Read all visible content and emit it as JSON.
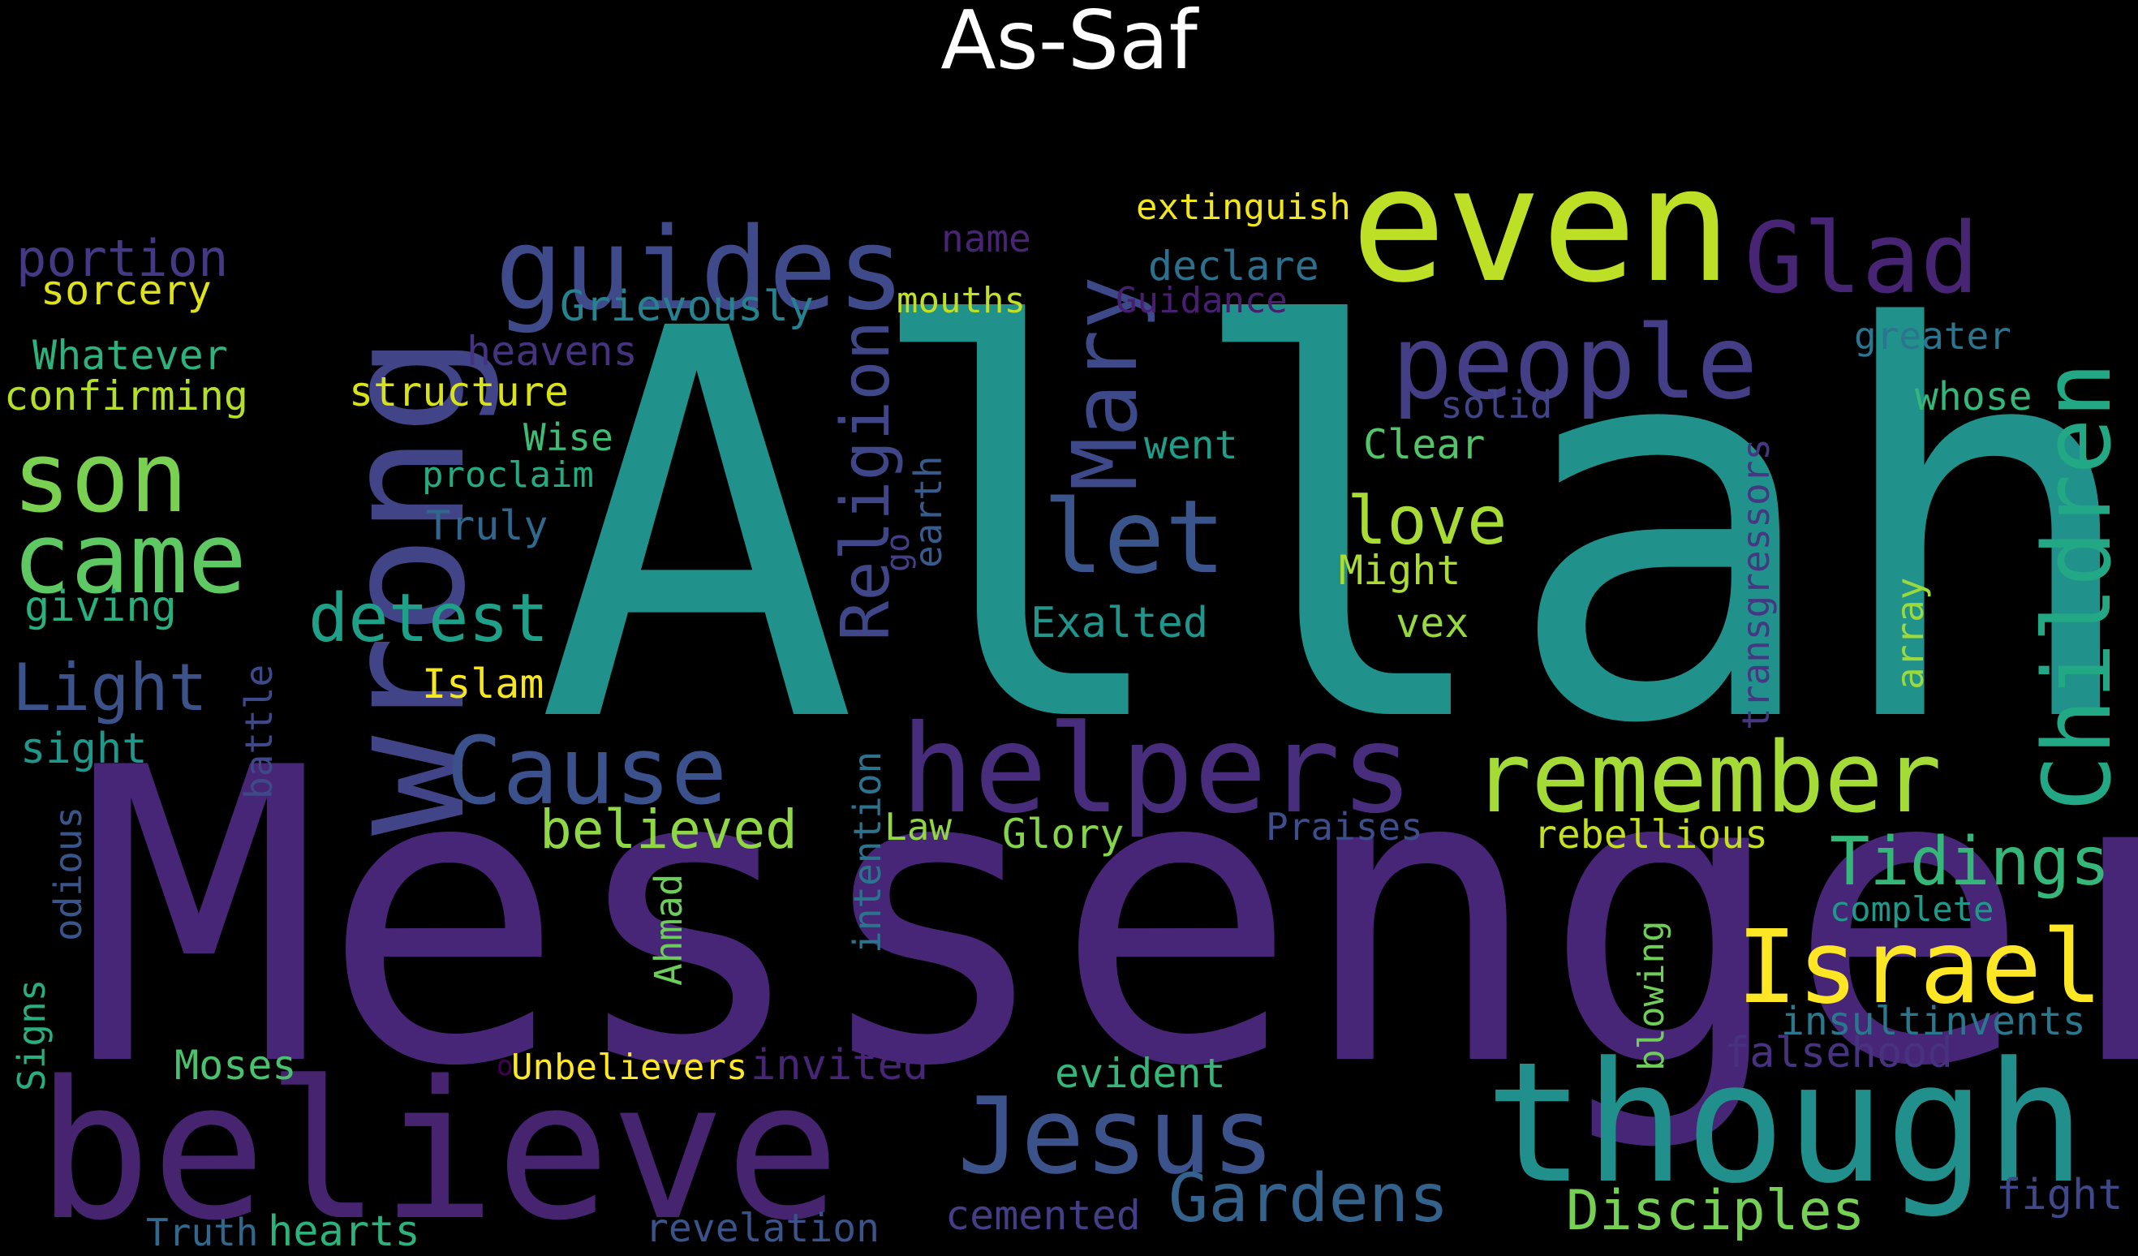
{
  "title": "As-Saf",
  "palette": {
    "background": "#000000",
    "title_color": "#ffffff"
  },
  "words": [
    {
      "text": "Allah",
      "color": "#21918c"
    },
    {
      "text": "Messenger",
      "color": "#482677"
    },
    {
      "text": "believe",
      "color": "#46246f"
    },
    {
      "text": "though",
      "color": "#21908d"
    },
    {
      "text": "wrong",
      "color": "#414487"
    },
    {
      "text": "even",
      "color": "#bddf26"
    },
    {
      "text": "helpers",
      "color": "#472d7b"
    },
    {
      "text": "Israel",
      "color": "#fde725"
    },
    {
      "text": "remember",
      "color": "#a5db36"
    },
    {
      "text": "guides",
      "color": "#3e4a89"
    },
    {
      "text": "people",
      "color": "#433e85"
    },
    {
      "text": "Jesus",
      "color": "#3b528b"
    },
    {
      "text": "Glad",
      "color": "#482475"
    },
    {
      "text": "Children",
      "color": "#22a884"
    },
    {
      "text": "Mary",
      "color": "#3e4989"
    },
    {
      "text": "let",
      "color": "#3a548c"
    },
    {
      "text": "Cause",
      "color": "#3b518b"
    },
    {
      "text": "came",
      "color": "#5ec962"
    },
    {
      "text": "son",
      "color": "#7ad151"
    },
    {
      "text": "Religion",
      "color": "#3f4788"
    },
    {
      "text": "Tidings",
      "color": "#35b779"
    },
    {
      "text": "detest",
      "color": "#1fa088"
    },
    {
      "text": "Light",
      "color": "#3b528b"
    },
    {
      "text": "love",
      "color": "#a8db34"
    },
    {
      "text": "Gardens",
      "color": "#33638d"
    },
    {
      "text": "Disciples",
      "color": "#75d054"
    },
    {
      "text": "believed",
      "color": "#8fd744"
    },
    {
      "text": "portion",
      "color": "#443a83"
    },
    {
      "text": "sorcery",
      "color": "#dde318"
    },
    {
      "text": "Grievously",
      "color": "#26828e"
    },
    {
      "text": "Whatever",
      "color": "#2db27d"
    },
    {
      "text": "confirming",
      "color": "#b5de2b"
    },
    {
      "text": "heavens",
      "color": "#46337f"
    },
    {
      "text": "structure",
      "color": "#d8e219"
    },
    {
      "text": "Wise",
      "color": "#3dbc74"
    },
    {
      "text": "proclaim",
      "color": "#25ab82"
    },
    {
      "text": "Truly",
      "color": "#31688e"
    },
    {
      "text": "giving",
      "color": "#2ab07f"
    },
    {
      "text": "sight",
      "color": "#1f988b"
    },
    {
      "text": "battle",
      "color": "#3e4989"
    },
    {
      "text": "odious",
      "color": "#39568c"
    },
    {
      "text": "Signs",
      "color": "#29af7f"
    },
    {
      "text": "Moses",
      "color": "#4ac16d"
    },
    {
      "text": "Unbelievers",
      "color": "#fde725"
    },
    {
      "text": "invited",
      "color": "#482677"
    },
    {
      "text": "Islam",
      "color": "#f6e620"
    },
    {
      "text": "Truth",
      "color": "#31688e"
    },
    {
      "text": "hearts",
      "color": "#2db27d"
    },
    {
      "text": "revelation",
      "color": "#3a538b"
    },
    {
      "text": "cemented",
      "color": "#433e85"
    },
    {
      "text": "name",
      "color": "#482475"
    },
    {
      "text": "mouths",
      "color": "#c2df23"
    },
    {
      "text": "extinguish",
      "color": "#f1e51d"
    },
    {
      "text": "declare",
      "color": "#2d708e"
    },
    {
      "text": "Guidance",
      "color": "#481f70"
    },
    {
      "text": "earth",
      "color": "#375b8d"
    },
    {
      "text": "solid",
      "color": "#404588"
    },
    {
      "text": "went",
      "color": "#1f9e89"
    },
    {
      "text": "Clear",
      "color": "#52c569"
    },
    {
      "text": "Might",
      "color": "#aadc32"
    },
    {
      "text": "vex",
      "color": "#95d840"
    },
    {
      "text": "Exalted",
      "color": "#1f958b"
    },
    {
      "text": "Law",
      "color": "#90d743"
    },
    {
      "text": "Glory",
      "color": "#85d54a"
    },
    {
      "text": "Praises",
      "color": "#3d4e8a"
    },
    {
      "text": "rebellious",
      "color": "#c5e021"
    },
    {
      "text": "intention",
      "color": "#2c738e"
    },
    {
      "text": "Ahmad",
      "color": "#6ccd5a"
    },
    {
      "text": "evident",
      "color": "#35b779"
    },
    {
      "text": "blowing",
      "color": "#6ece58"
    },
    {
      "text": "transgressors",
      "color": "#453781"
    },
    {
      "text": "greater",
      "color": "#2b758e"
    },
    {
      "text": "whose",
      "color": "#35b779"
    },
    {
      "text": "array",
      "color": "#9bd93c"
    },
    {
      "text": "complete",
      "color": "#1f9a8a"
    },
    {
      "text": "insultinvents",
      "color": "#2a788e"
    },
    {
      "text": "falsehood",
      "color": "#46327e"
    },
    {
      "text": "fight",
      "color": "#3f4889"
    },
    {
      "text": "go",
      "color": "#433e85"
    },
    {
      "text": "o",
      "color": "#440154"
    }
  ]
}
